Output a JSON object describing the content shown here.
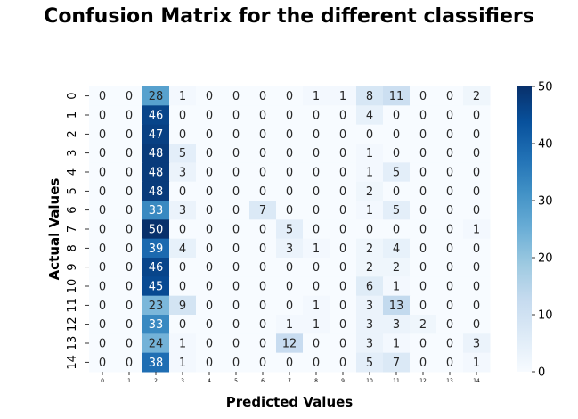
{
  "chart_data": {
    "type": "heatmap",
    "title": "Confusion Matrix for the different classifiers",
    "xlabel": "Predicted Values",
    "ylabel": "Actual Values",
    "x_tick_labels": [
      "0",
      "1",
      "2",
      "3",
      "4",
      "5",
      "6",
      "7",
      "8",
      "9",
      "10",
      "11",
      "12",
      "13",
      "14"
    ],
    "y_tick_labels": [
      "0",
      "1",
      "2",
      "3",
      "4",
      "5",
      "6",
      "7",
      "8",
      "9",
      "10",
      "11",
      "12",
      "13",
      "14"
    ],
    "values": [
      [
        0,
        0,
        28,
        1,
        0,
        0,
        0,
        0,
        1,
        1,
        8,
        11,
        0,
        0,
        2
      ],
      [
        0,
        0,
        46,
        0,
        0,
        0,
        0,
        0,
        0,
        0,
        4,
        0,
        0,
        0,
        0
      ],
      [
        0,
        0,
        47,
        0,
        0,
        0,
        0,
        0,
        0,
        0,
        0,
        0,
        0,
        0,
        0
      ],
      [
        0,
        0,
        48,
        5,
        0,
        0,
        0,
        0,
        0,
        0,
        1,
        0,
        0,
        0,
        0
      ],
      [
        0,
        0,
        48,
        3,
        0,
        0,
        0,
        0,
        0,
        0,
        1,
        5,
        0,
        0,
        0
      ],
      [
        0,
        0,
        48,
        0,
        0,
        0,
        0,
        0,
        0,
        0,
        2,
        0,
        0,
        0,
        0
      ],
      [
        0,
        0,
        33,
        3,
        0,
        0,
        7,
        0,
        0,
        0,
        1,
        5,
        0,
        0,
        0
      ],
      [
        0,
        0,
        50,
        0,
        0,
        0,
        0,
        5,
        0,
        0,
        0,
        0,
        0,
        0,
        1
      ],
      [
        0,
        0,
        39,
        4,
        0,
        0,
        0,
        3,
        1,
        0,
        2,
        4,
        0,
        0,
        0
      ],
      [
        0,
        0,
        46,
        0,
        0,
        0,
        0,
        0,
        0,
        0,
        2,
        2,
        0,
        0,
        0
      ],
      [
        0,
        0,
        45,
        0,
        0,
        0,
        0,
        0,
        0,
        0,
        6,
        1,
        0,
        0,
        0
      ],
      [
        0,
        0,
        23,
        9,
        0,
        0,
        0,
        0,
        1,
        0,
        3,
        13,
        0,
        0,
        0
      ],
      [
        0,
        0,
        33,
        0,
        0,
        0,
        0,
        1,
        1,
        0,
        3,
        3,
        2,
        0,
        0
      ],
      [
        0,
        0,
        24,
        1,
        0,
        0,
        0,
        12,
        0,
        0,
        3,
        1,
        0,
        0,
        3
      ],
      [
        0,
        0,
        38,
        1,
        0,
        0,
        0,
        0,
        0,
        0,
        5,
        7,
        0,
        0,
        1
      ]
    ],
    "colormap": "Blues",
    "colorbar": {
      "min": 0,
      "max": 50,
      "ticks": [
        0,
        10,
        20,
        30,
        40,
        50
      ]
    },
    "annotated": true,
    "grid": false
  },
  "colors": {
    "low": "#f7fbff",
    "high": "#08306b",
    "text_dark": "#262626",
    "text_light": "#ffffff"
  }
}
